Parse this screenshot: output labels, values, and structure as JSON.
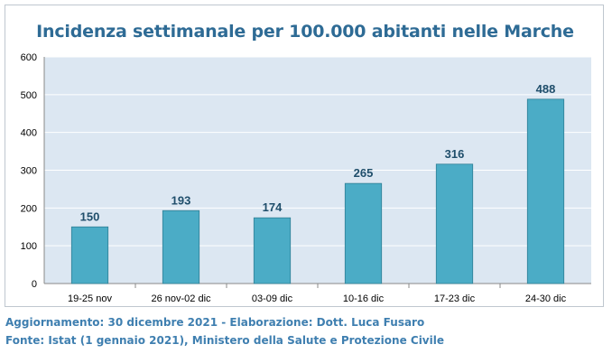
{
  "chart_data": {
    "type": "bar",
    "title": "Incidenza settimanale per 100.000 abitanti nelle Marche",
    "categories": [
      "19-25 nov",
      "26 nov-02 dic",
      "03-09 dic",
      "10-16 dic",
      "17-23 dic",
      "24-30 dic"
    ],
    "values": [
      150,
      193,
      174,
      265,
      316,
      488
    ],
    "ylim": [
      0,
      600
    ],
    "yticks": [
      0,
      100,
      200,
      300,
      400,
      500,
      600
    ],
    "xlabel": "",
    "ylabel": "",
    "grid": true,
    "legend": "none",
    "colors": {
      "bar": "#4bacc6",
      "bar_stroke": "#2f7f95",
      "plot_bg": "#dce7f2",
      "grid": "#ffffff",
      "label": "#1f4e6b",
      "title": "#2e6b95"
    }
  },
  "footer": {
    "line1": "Aggiornamento: 30 dicembre 2021 - Elaborazione: Dott. Luca Fusaro",
    "line2": "Fonte: Istat (1 gennaio 2021), Ministero della Salute e Protezione Civile"
  }
}
